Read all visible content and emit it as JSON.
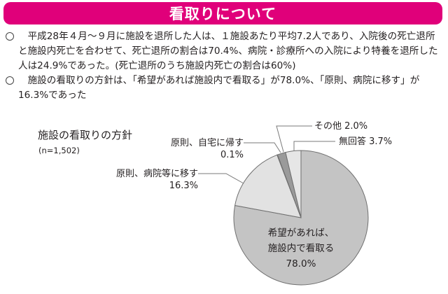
{
  "header": {
    "title": "看取りについて",
    "color": "#e0007a"
  },
  "bullets": [
    {
      "marker": "circle-bullet",
      "text": "平成28年４月～９月に施設を退所した人は、１施設あたり平均7.2人であり、入院後の死亡退所と施設内死亡を合わせて、死亡退所の割合は70.4%、病院・診療所への入院により特養を退所した人は24.9%であった。(死亡退所のうち施設内死亡の割合は60%)"
    },
    {
      "marker": "circle-bullet",
      "text": "施設の看取りの方針は、「希望があれば施設内で看取る」が78.0%、「原則、病院に移す」が16.3%であった"
    }
  ],
  "chart": {
    "title": "施設の看取りの方針",
    "n_label": "(n=1,502)",
    "labels": {
      "kibou_line1": "希望があれば、",
      "kibou_line2": "施設内で看取る",
      "kibou_value": "78.0%",
      "byouin_name": "原則、病院等に移す",
      "byouin_value": "16.3%",
      "jitaku_name": "原則、自宅に帰す",
      "jitaku_value": "0.1%",
      "sonota": "その他 2.0%",
      "mukaitou": "無回答 3.7%"
    }
  },
  "chart_data": {
    "type": "pie",
    "title": "施設の看取りの方針",
    "subtitle": "(n=1,502)",
    "categories": [
      "希望があれば、施設内で看取る",
      "原則、病院等に移す",
      "原則、自宅に帰す",
      "その他",
      "無回答"
    ],
    "values": [
      78.0,
      16.3,
      0.1,
      2.0,
      3.7
    ],
    "unit": "%",
    "colors": [
      "#c4c4c4",
      "#e2e2e2",
      "#cfcfcf",
      "#9a9a9a",
      "#e6e6e6"
    ],
    "start_angle": "12 o'clock",
    "direction": "clockwise",
    "legend": "none (leader-line labels)"
  }
}
